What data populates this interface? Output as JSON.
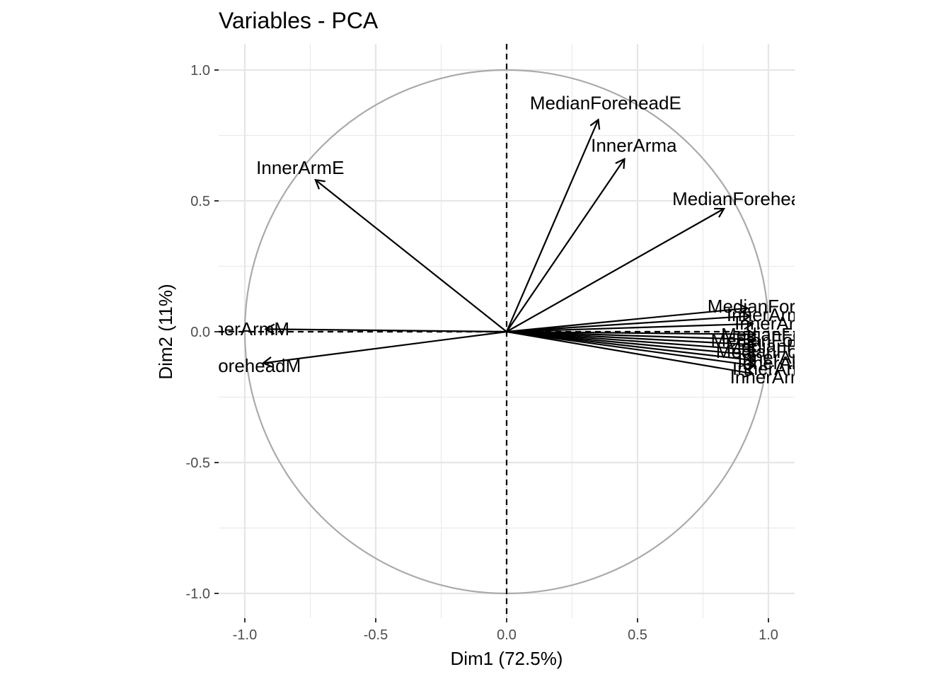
{
  "chart_data": {
    "type": "scatter",
    "subtype": "pca-variable-correlation-circle",
    "title": "Variables - PCA",
    "xlabel": "Dim1 (72.5%)",
    "ylabel": "Dim2 (11%)",
    "xlim": [
      -1.1,
      1.1
    ],
    "ylim": [
      -1.1,
      1.1
    ],
    "xticks": [
      -1.0,
      -0.5,
      0.0,
      0.5,
      1.0
    ],
    "yticks": [
      -1.0,
      -0.5,
      0.0,
      0.5,
      1.0
    ],
    "xtick_labels": [
      "-1.0",
      "-0.5",
      "0.0",
      "0.5",
      "1.0"
    ],
    "ytick_labels": [
      "-1.0",
      "-0.5",
      "0.0",
      "0.5",
      "1.0"
    ],
    "grid": true,
    "circle_color": "#aaaaaa",
    "arrow_color": "#000000",
    "variables": [
      {
        "name": "MedianForeheadE",
        "x": 0.35,
        "y": 0.81
      },
      {
        "name": "InnerArma",
        "x": 0.45,
        "y": 0.66
      },
      {
        "name": "MedianForeheac",
        "x": 0.83,
        "y": 0.47
      },
      {
        "name": "InnerArmE",
        "x": -0.73,
        "y": 0.58
      },
      {
        "name": "nnerArmM",
        "x": -0.92,
        "y": 0.01
      },
      {
        "name": "anForeheadM",
        "x": -0.93,
        "y": -0.12
      },
      {
        "name": "MedianForehe",
        "x": 0.92,
        "y": 0.09
      },
      {
        "name": "InnerArmb",
        "x": 0.93,
        "y": 0.06
      },
      {
        "name": "InnerArm",
        "x": 0.94,
        "y": 0.03
      },
      {
        "name": "MedianForeh",
        "x": 0.95,
        "y": -0.01
      },
      {
        "name": "MedianForehea",
        "x": 0.95,
        "y": -0.03
      },
      {
        "name": "MedianFore",
        "x": 0.95,
        "y": -0.05
      },
      {
        "name": "MedianForehe",
        "x": 0.95,
        "y": -0.07
      },
      {
        "name": "InnerArm",
        "x": 0.95,
        "y": -0.09
      },
      {
        "name": "InnerArm",
        "x": 0.95,
        "y": -0.11
      },
      {
        "name": "InnerArmd",
        "x": 0.95,
        "y": -0.13
      },
      {
        "name": "InnerArmc",
        "x": 0.94,
        "y": -0.16
      }
    ]
  }
}
